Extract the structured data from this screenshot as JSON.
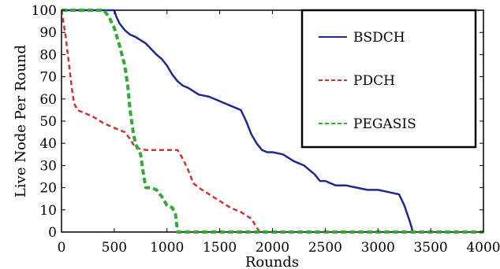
{
  "chart_data": {
    "type": "line",
    "title": "",
    "xlabel": "Rounds",
    "ylabel": "Live Node Per Round",
    "xlim": [
      0,
      4000
    ],
    "ylim": [
      0,
      100
    ],
    "xticks": [
      "0",
      "500",
      "1000",
      "1500",
      "2000",
      "2500",
      "3000",
      "3500",
      "4000"
    ],
    "yticks": [
      "0",
      "10",
      "20",
      "30",
      "40",
      "50",
      "60",
      "70",
      "80",
      "90",
      "100"
    ],
    "grid": false,
    "legend_position": "top-right",
    "series": [
      {
        "name": "BSDCH",
        "color": "#1f2a8c",
        "style": "solid",
        "x": [
          0,
          500,
          520,
          550,
          600,
          650,
          700,
          800,
          900,
          950,
          1000,
          1050,
          1100,
          1150,
          1200,
          1300,
          1400,
          1500,
          1600,
          1700,
          1750,
          1800,
          1850,
          1900,
          1950,
          2000,
          2100,
          2200,
          2300,
          2400,
          2450,
          2500,
          2600,
          2700,
          2800,
          2900,
          3000,
          3100,
          3200,
          3250,
          3300,
          3320,
          3330
        ],
        "y": [
          100,
          100,
          97,
          94,
          91,
          89,
          88,
          85,
          80,
          78,
          75,
          71,
          68,
          66,
          65,
          62,
          61,
          59,
          57,
          55,
          50,
          44,
          40,
          37,
          36,
          36,
          35,
          32,
          30,
          26,
          23,
          23,
          21,
          21,
          20,
          19,
          19,
          18,
          17,
          12,
          5,
          2,
          0
        ]
      },
      {
        "name": "PDCH",
        "color": "#cc3333",
        "style": "dashed",
        "x": [
          0,
          20,
          40,
          60,
          80,
          100,
          120,
          150,
          200,
          300,
          400,
          500,
          600,
          650,
          700,
          800,
          900,
          1000,
          1100,
          1150,
          1200,
          1250,
          1300,
          1400,
          1500,
          1600,
          1700,
          1800,
          1850,
          1880
        ],
        "y": [
          100,
          94,
          88,
          80,
          72,
          64,
          58,
          55,
          54,
          52,
          49,
          47,
          45,
          42,
          38,
          37,
          37,
          37,
          37,
          33,
          28,
          22,
          20,
          17,
          14,
          11,
          9,
          6,
          2,
          0
        ]
      },
      {
        "name": "PEGASIS",
        "color": "#33aa33",
        "style": "dashed",
        "x": [
          0,
          400,
          450,
          500,
          550,
          600,
          630,
          650,
          680,
          700,
          750,
          780,
          800,
          850,
          900,
          950,
          1000,
          1050,
          1080,
          1100,
          1120,
          4000
        ],
        "y": [
          100,
          100,
          97,
          92,
          84,
          75,
          65,
          55,
          45,
          40,
          35,
          25,
          20,
          20,
          19,
          16,
          12,
          11,
          8,
          0,
          0,
          0
        ]
      }
    ]
  }
}
